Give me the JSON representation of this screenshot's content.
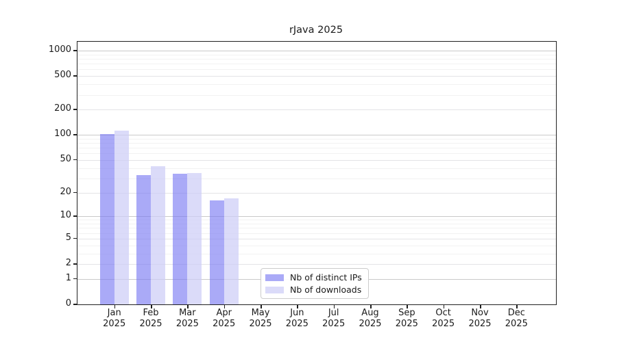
{
  "chart_data": {
    "type": "bar",
    "title": "rJava 2025",
    "y_scale": "log1p",
    "grid": true,
    "ylim": [
      0,
      1200
    ],
    "categories": [
      "Jan 2025",
      "Feb 2025",
      "Mar 2025",
      "Apr 2025",
      "May 2025",
      "Jun 2025",
      "Jul 2025",
      "Aug 2025",
      "Sep 2025",
      "Oct 2025",
      "Nov 2025",
      "Dec 2025"
    ],
    "series": [
      {
        "name": "Nb of distinct IPs",
        "color": "#a9a9f4",
        "fill": "rgba(120,120,242,0.63)",
        "values": [
          102,
          33,
          34,
          16,
          0,
          0,
          0,
          0,
          0,
          0,
          0,
          0
        ]
      },
      {
        "name": "Nb of downloads",
        "color": "#dcdcf8",
        "fill": "rgba(205,205,247,0.72)",
        "values": [
          112,
          42,
          35,
          17,
          0,
          0,
          0,
          0,
          0,
          0,
          0,
          0
        ]
      }
    ],
    "y_ticks": [
      0,
      1,
      2,
      5,
      10,
      20,
      50,
      100,
      200,
      500,
      1000
    ],
    "y_minor_gridlines": [
      3,
      4,
      6,
      7,
      8,
      9,
      30,
      40,
      60,
      70,
      80,
      90,
      300,
      400,
      600,
      700,
      800,
      900
    ],
    "legend_position": "lower center",
    "colors": {
      "grid_decade": "#c9c9c9",
      "grid_labeled": "#e3e3e6",
      "grid_minor": "#f2f2f2",
      "spine": "#1f1f1f",
      "text": "#1a1a1a",
      "legend_border": "#cccccc"
    }
  }
}
